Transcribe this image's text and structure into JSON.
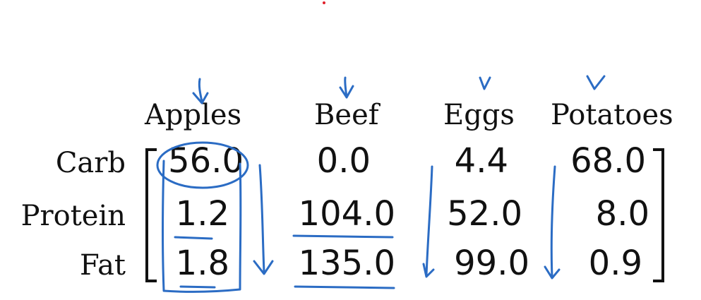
{
  "columns": [
    "Apples",
    "Beef",
    "Eggs",
    "Potatoes"
  ],
  "rows": [
    {
      "label": "Carb",
      "values": [
        "56.0",
        "0.0",
        "4.4",
        "68.0"
      ]
    },
    {
      "label": "Protein",
      "values": [
        "1.2",
        "104.0",
        "52.0",
        "8.0"
      ]
    },
    {
      "label": "Fat",
      "values": [
        "1.8",
        "135.0",
        "99.0",
        "0.9"
      ]
    }
  ],
  "ink_color": "#2b6cc4",
  "marker_color": "#e0202a"
}
